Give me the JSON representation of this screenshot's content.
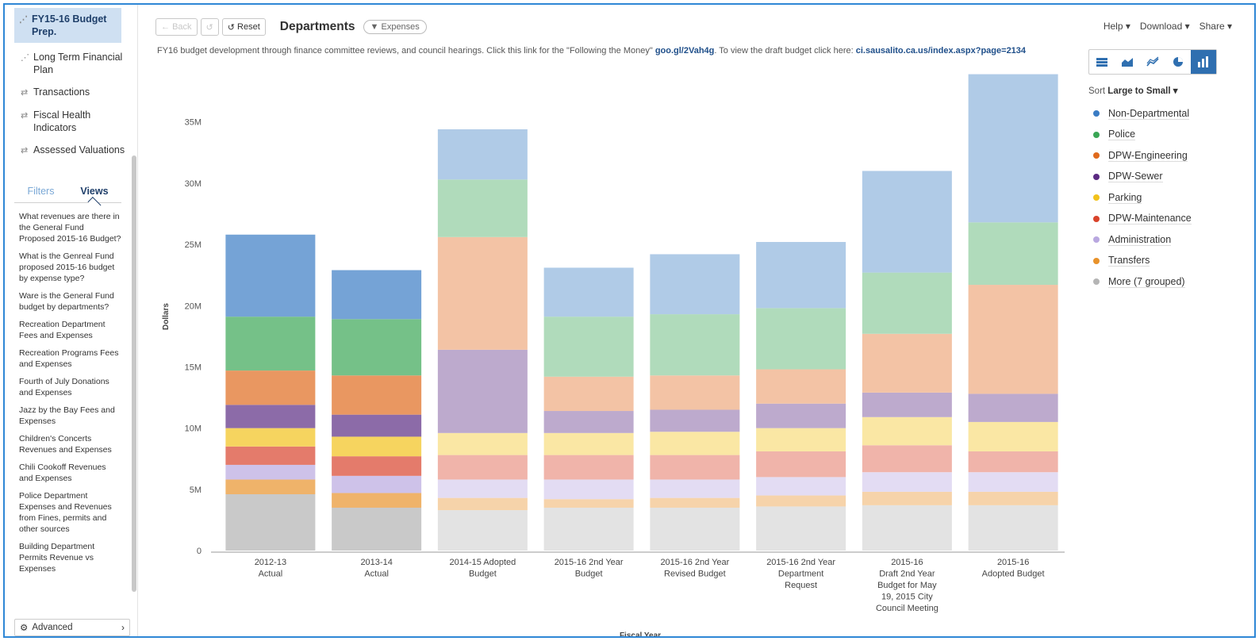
{
  "sidebar": {
    "nav": [
      {
        "label": "FY15-16 Budget Prep.",
        "icon": "trend-line-icon",
        "active": true
      },
      {
        "label": "Long Term Financial Plan",
        "icon": "trend-line-icon"
      },
      {
        "label": "Transactions",
        "icon": "transfer-arrows-icon"
      },
      {
        "label": "Fiscal Health Indicators",
        "icon": "transfer-arrows-icon"
      },
      {
        "label": "Assessed Valuations",
        "icon": "transfer-arrows-icon"
      }
    ],
    "tabs": {
      "filters": "Filters",
      "views": "Views"
    },
    "views": [
      "What revenues are there in the General Fund Proposed 2015-16 Budget?",
      "What is the Genreal Fund proposed 2015-16 budget by expense type?",
      "Ware is the General Fund budget by departments?",
      "Recreation Department Fees and Expenses",
      "Recreation Programs Fees and Expenses",
      "Fourth of July Donations and Expenses",
      "Jazz by the Bay Fees and Expenses",
      "Children's Concerts Revenues and Expenses",
      "Chili Cookoff Revenues and Expenses",
      "Police Department Expenses and Revenues from Fines, permits and other sources",
      "Building Department Permits Revenue vs Expenses"
    ],
    "advanced": "Advanced"
  },
  "toolbar": {
    "back": "Back",
    "reset": "Reset",
    "title": "Departments",
    "filter_pill": "Expenses"
  },
  "topright": {
    "help": "Help ▾",
    "download": "Download ▾",
    "share": "Share ▾"
  },
  "description": {
    "text1": "FY16 budget development through finance committee reviews, and council hearings. Click this link for the \"Following the Money\" ",
    "link1": "goo.gl/2Vah4g",
    "text2": ". To view the draft budget click here: ",
    "link2": "ci.sausalito.ca.us/index.aspx?page=2134"
  },
  "sort": {
    "label": "Sort",
    "value": "Large to Small ▾"
  },
  "colors": {
    "Non-Departmental": "#3a7cc4",
    "Police": "#3aa655",
    "DPW-Engineering": "#e06a1d",
    "DPW-Sewer": "#5b2b82",
    "Parking": "#f2c21b",
    "DPW-Maintenance": "#d9432b",
    "Administration": "#b9a8e0",
    "Transfers": "#e8922a",
    "More (7 grouped)": "#b5b5b5"
  },
  "chart_data": {
    "type": "bar",
    "stacked": true,
    "xlabel": "Fiscal Year",
    "ylabel": "Dollars",
    "ylim": [
      0,
      39000000
    ],
    "yticks": [
      "0",
      "5M",
      "10M",
      "15M",
      "20M",
      "25M",
      "30M",
      "35M"
    ],
    "highlighted_categories": [
      "2012-13 Actual",
      "2013-14 Actual"
    ],
    "categories": [
      "2012-13 Actual",
      "2013-14 Actual",
      "2014-15 Adopted Budget",
      "2015-16 2nd Year Budget",
      "2015-16 2nd Year Revised Budget",
      "2015-16 2nd Year Department Request",
      "2015-16 Draft 2nd Year Budget for May 19, 2015 City Council Meeting",
      "2015-16 Adopted Budget"
    ],
    "category_lines": [
      [
        "2012-13",
        "Actual"
      ],
      [
        "2013-14",
        "Actual"
      ],
      [
        "2014-15 Adopted",
        "Budget"
      ],
      [
        "2015-16 2nd Year",
        "Budget"
      ],
      [
        "2015-16 2nd Year",
        "Revised Budget"
      ],
      [
        "2015-16 2nd Year",
        "Department",
        "Request"
      ],
      [
        "2015-16",
        "Draft 2nd Year",
        "Budget for May",
        "19, 2015 City",
        "Council Meeting"
      ],
      [
        "2015-16",
        "Adopted Budget"
      ]
    ],
    "series": [
      {
        "name": "More (7 grouped)",
        "values": [
          4.6,
          3.5,
          3.3,
          3.5,
          3.5,
          3.6,
          3.7,
          3.7
        ]
      },
      {
        "name": "Transfers",
        "values": [
          1.2,
          1.2,
          1.0,
          0.7,
          0.8,
          0.9,
          1.1,
          1.1
        ]
      },
      {
        "name": "Administration",
        "values": [
          1.2,
          1.4,
          1.5,
          1.6,
          1.5,
          1.5,
          1.6,
          1.6
        ]
      },
      {
        "name": "DPW-Maintenance",
        "values": [
          1.5,
          1.6,
          2.0,
          2.0,
          2.0,
          2.1,
          2.2,
          1.7
        ]
      },
      {
        "name": "Parking",
        "values": [
          1.5,
          1.6,
          1.8,
          1.8,
          1.9,
          1.9,
          2.3,
          2.4
        ]
      },
      {
        "name": "DPW-Sewer",
        "values": [
          1.9,
          1.8,
          6.8,
          1.8,
          1.8,
          2.0,
          2.0,
          2.3
        ]
      },
      {
        "name": "DPW-Engineering",
        "values": [
          2.8,
          3.2,
          9.2,
          2.8,
          2.8,
          2.8,
          4.8,
          8.9
        ]
      },
      {
        "name": "Police",
        "values": [
          4.4,
          4.6,
          4.7,
          4.9,
          5.0,
          5.0,
          5.0,
          5.1
        ]
      },
      {
        "name": "Non-Departmental",
        "values": [
          6.7,
          4.0,
          4.1,
          4.0,
          4.9,
          5.4,
          8.3,
          12.1
        ]
      }
    ]
  }
}
